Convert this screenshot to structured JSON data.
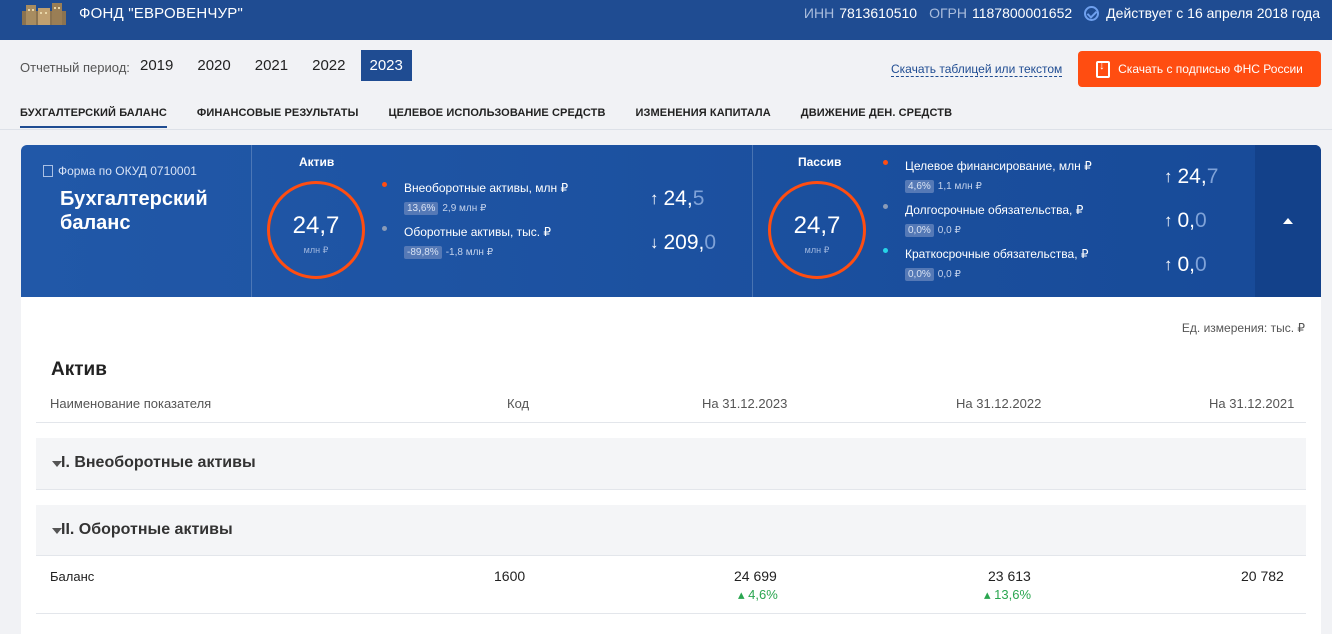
{
  "header": {
    "company": "ФОНД \"ЕВРОВЕНЧУР\"",
    "inn_label": "ИНН",
    "inn": "7813610510",
    "ogrn_label": "ОГРН",
    "ogrn": "1187800001652",
    "status": "Действует с 16 апреля 2018 года"
  },
  "period": {
    "label": "Отчетный период:",
    "years": [
      "2019",
      "2020",
      "2021",
      "2022",
      "2023"
    ],
    "active": "2023"
  },
  "download": {
    "text_link": "Скачать таблицей или текстом",
    "button": "Скачать с подписью ФНС России"
  },
  "tabs": [
    "БУХГАЛТЕРСКИЙ БАЛАНС",
    "ФИНАНСОВЫЕ РЕЗУЛЬТАТЫ",
    "ЦЕЛЕВОЕ ИСПОЛЬЗОВАНИЕ СРЕДСТВ",
    "ИЗМЕНЕНИЯ КАПИТАЛА",
    "ДВИЖЕНИЕ ДЕН. СРЕДСТВ"
  ],
  "summary": {
    "form": "Форма по ОКУД 0710001",
    "title_line1": "Бухгалтерский",
    "title_line2": "баланс",
    "aktiv": {
      "title": "Актив",
      "ring_value": "24,7",
      "ring_unit": "млн ₽",
      "items": [
        {
          "label": "Внеоборотные активы, млн ₽",
          "pct": "13,6%",
          "delta": "2,9 млн ₽",
          "arrow": "↑",
          "int": "24,",
          "dec": "5",
          "dot": "#ff4d11"
        },
        {
          "label": "Оборотные активы, тыс. ₽",
          "pct": "-89,8%",
          "delta": "-1,8 млн ₽",
          "arrow": "↓",
          "int": "209,",
          "dec": "0",
          "dot": "#8a9bb8"
        }
      ]
    },
    "passiv": {
      "title": "Пассив",
      "ring_value": "24,7",
      "ring_unit": "млн ₽",
      "items": [
        {
          "label": "Целевое финансирование, млн ₽",
          "pct": "4,6%",
          "delta": "1,1 млн ₽",
          "arrow": "↑",
          "int": "24,",
          "dec": "7",
          "dot": "#ff4d11"
        },
        {
          "label": "Долгосрочные обязательства, ₽",
          "pct": "0,0%",
          "delta": "0,0 ₽",
          "arrow": "↑",
          "int": "0,",
          "dec": "0",
          "dot": "#8a9bb8"
        },
        {
          "label": "Краткосрочные обязательства, ₽",
          "pct": "0,0%",
          "delta": "0,0 ₽",
          "arrow": "↑",
          "int": "0,",
          "dec": "0",
          "dot": "#26d4e8"
        }
      ]
    }
  },
  "table": {
    "unit_note": "Ед. измерения: тыс. ₽",
    "section_title": "Актив",
    "columns": [
      "Наименование показателя",
      "Код",
      "На 31.12.2023",
      "На 31.12.2022",
      "На 31.12.2021"
    ],
    "groups": [
      "I. Внеоборотные активы",
      "II. Оборотные активы"
    ],
    "balance": {
      "name": "Баланс",
      "code": "1600",
      "v2023": "24 699",
      "c2023": "4,6%",
      "v2022": "23 613",
      "c2022": "13,6%",
      "v2021": "20 782"
    }
  },
  "colors": {
    "brand": "#1f4c92",
    "accent": "#ff4d11",
    "positive": "#2aa650"
  }
}
